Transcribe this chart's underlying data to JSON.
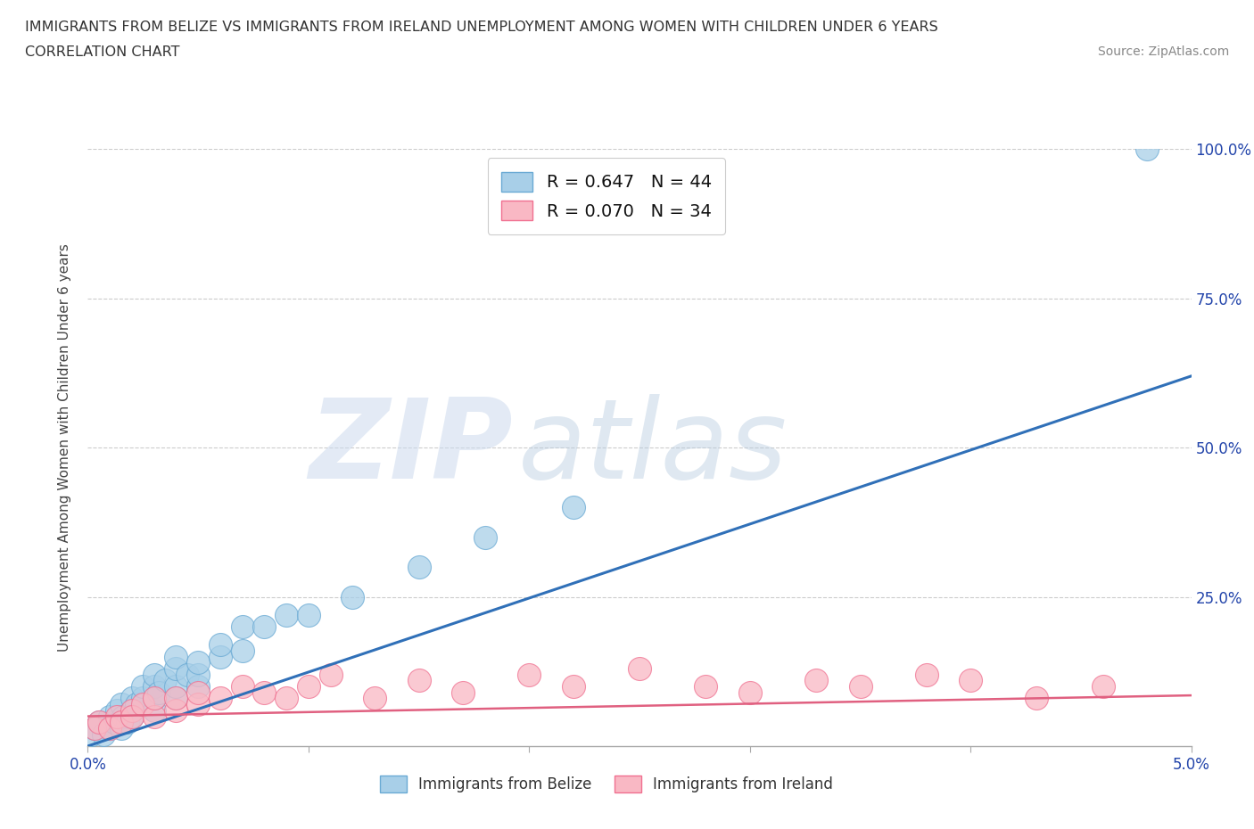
{
  "title_line1": "IMMIGRANTS FROM BELIZE VS IMMIGRANTS FROM IRELAND UNEMPLOYMENT AMONG WOMEN WITH CHILDREN UNDER 6 YEARS",
  "title_line2": "CORRELATION CHART",
  "source_text": "Source: ZipAtlas.com",
  "ylabel": "Unemployment Among Women with Children Under 6 years",
  "xlim": [
    0.0,
    0.05
  ],
  "ylim": [
    0.0,
    1.0
  ],
  "xticks": [
    0.0,
    0.01,
    0.02,
    0.03,
    0.04,
    0.05
  ],
  "xticklabels": [
    "0.0%",
    "",
    "",
    "",
    "",
    "5.0%"
  ],
  "yticks": [
    0.0,
    0.25,
    0.5,
    0.75,
    1.0
  ],
  "left_yticklabels": [
    "",
    "",
    "",
    "",
    ""
  ],
  "right_yticklabels": [
    "",
    "25.0%",
    "50.0%",
    "75.0%",
    "100.0%"
  ],
  "belize_color": "#a8cfe8",
  "ireland_color": "#f9b8c4",
  "belize_edge_color": "#6aaad4",
  "ireland_edge_color": "#f07090",
  "belize_line_color": "#3070b8",
  "ireland_line_color": "#e06080",
  "belize_R": 0.647,
  "belize_N": 44,
  "ireland_R": 0.07,
  "ireland_N": 34,
  "watermark_zip": "ZIP",
  "watermark_atlas": "atlas",
  "background_color": "#ffffff",
  "grid_color": "#cccccc",
  "belize_x": [
    0.0002,
    0.0003,
    0.0005,
    0.0007,
    0.001,
    0.001,
    0.0012,
    0.0013,
    0.0015,
    0.0015,
    0.0016,
    0.0018,
    0.002,
    0.002,
    0.002,
    0.0022,
    0.0025,
    0.0025,
    0.003,
    0.003,
    0.003,
    0.003,
    0.0032,
    0.0035,
    0.004,
    0.004,
    0.004,
    0.004,
    0.0045,
    0.005,
    0.005,
    0.005,
    0.006,
    0.006,
    0.007,
    0.007,
    0.008,
    0.009,
    0.01,
    0.012,
    0.015,
    0.018,
    0.022,
    0.048
  ],
  "belize_y": [
    0.02,
    0.03,
    0.04,
    0.02,
    0.05,
    0.03,
    0.04,
    0.06,
    0.03,
    0.07,
    0.05,
    0.04,
    0.06,
    0.08,
    0.05,
    0.07,
    0.08,
    0.1,
    0.06,
    0.08,
    0.1,
    0.12,
    0.09,
    0.11,
    0.08,
    0.1,
    0.13,
    0.15,
    0.12,
    0.1,
    0.12,
    0.14,
    0.15,
    0.17,
    0.16,
    0.2,
    0.2,
    0.22,
    0.22,
    0.25,
    0.3,
    0.35,
    0.4,
    1.0
  ],
  "ireland_x": [
    0.0003,
    0.0005,
    0.001,
    0.0013,
    0.0015,
    0.002,
    0.002,
    0.0025,
    0.003,
    0.003,
    0.004,
    0.004,
    0.005,
    0.005,
    0.006,
    0.007,
    0.008,
    0.009,
    0.01,
    0.011,
    0.013,
    0.015,
    0.017,
    0.02,
    0.022,
    0.025,
    0.028,
    0.03,
    0.033,
    0.035,
    0.038,
    0.04,
    0.043,
    0.046
  ],
  "ireland_y": [
    0.03,
    0.04,
    0.03,
    0.05,
    0.04,
    0.06,
    0.05,
    0.07,
    0.05,
    0.08,
    0.06,
    0.08,
    0.07,
    0.09,
    0.08,
    0.1,
    0.09,
    0.08,
    0.1,
    0.12,
    0.08,
    0.11,
    0.09,
    0.12,
    0.1,
    0.13,
    0.1,
    0.09,
    0.11,
    0.1,
    0.12,
    0.11,
    0.08,
    0.1
  ],
  "belize_line_x": [
    0.0,
    0.05
  ],
  "belize_line_y": [
    0.0,
    0.62
  ],
  "ireland_line_x": [
    0.0,
    0.05
  ],
  "ireland_line_y": [
    0.05,
    0.085
  ]
}
